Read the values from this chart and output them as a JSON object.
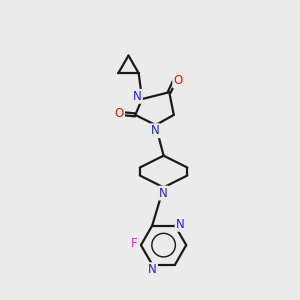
{
  "bg_color": "#ebebeb",
  "bond_color": "#1a1a1a",
  "N_color": "#2020ee",
  "O_color": "#ee1111",
  "F_color": "#cc33cc",
  "lw": 1.6,
  "figsize": [
    3.0,
    3.0
  ],
  "dpi": 100,
  "xlim": [
    0,
    10
  ],
  "ylim": [
    0,
    13
  ]
}
